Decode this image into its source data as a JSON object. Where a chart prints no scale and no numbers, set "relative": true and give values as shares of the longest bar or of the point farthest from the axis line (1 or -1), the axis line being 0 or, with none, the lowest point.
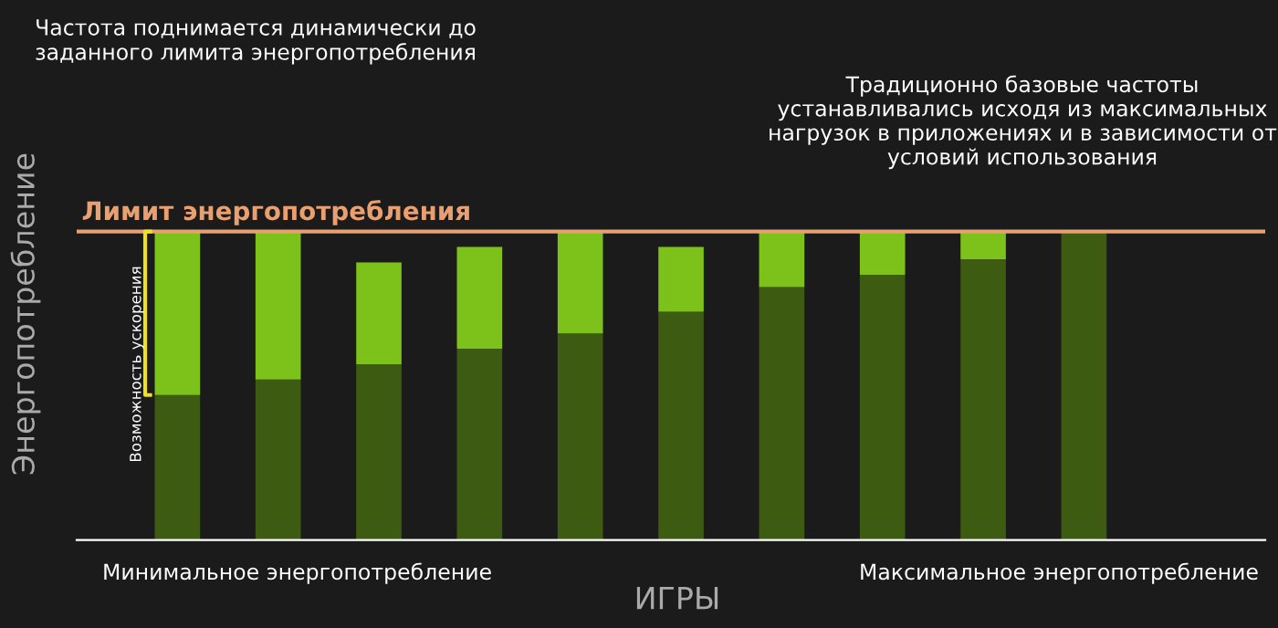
{
  "chart_data": {
    "type": "bar",
    "stacked": true,
    "relative": true,
    "xlabel": "ИГРЫ",
    "ylabel": "Энергопотребление",
    "categories": [
      null,
      null,
      null,
      null,
      null,
      null,
      null,
      null,
      null,
      null
    ],
    "series": [
      {
        "color": "#3d5c12",
        "values": [
          0.47,
          0.52,
          0.57,
          0.62,
          0.67,
          0.74,
          0.82,
          0.86,
          0.91,
          1.0
        ]
      },
      {
        "color": "#7cc21a",
        "values": [
          0.53,
          0.48,
          0.33,
          0.33,
          0.33,
          0.21,
          0.18,
          0.14,
          0.09,
          0
        ]
      }
    ],
    "ref_lines": [
      {
        "axis": "y",
        "value": 1,
        "label": "Лимит энергопотребления",
        "color": "#e8a070"
      }
    ],
    "annotations": [
      "Частота поднимается динамически до заданного лимита энергопотребления",
      "Традиционно базовые частоты устанавливались исходя из максимальных нагрузок в приложениях и в зависимости от условий использования",
      "Возможность ускорения",
      "Минимальное энергопотребление",
      "Максимальное энергопотребление"
    ],
    "grid": false
  }
}
